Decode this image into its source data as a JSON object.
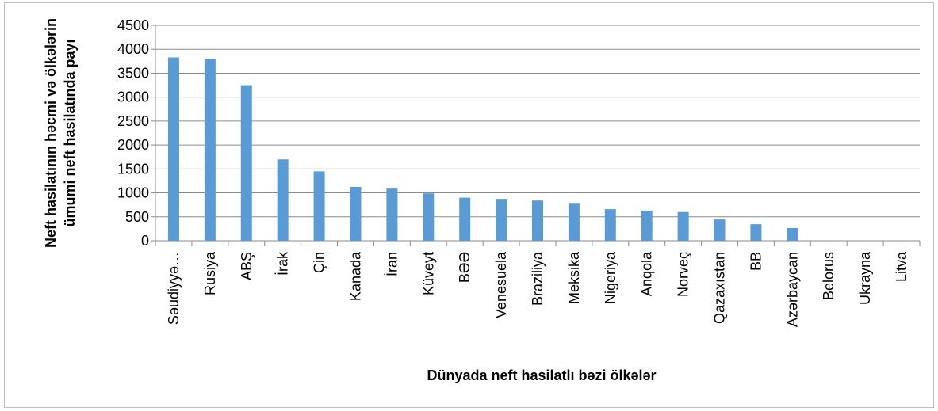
{
  "chart_data": {
    "type": "bar",
    "ylabel": [
      "Neft hasilatının həcmi və ölkələrin",
      "ümumi  neft hasilatında payı"
    ],
    "xlabel": "Dünyada neft hasilatlı bəzi ölkələr",
    "categories": [
      "Səudiyyə…",
      "Rusiya",
      "ABŞ",
      "İrak",
      "Çin",
      "Kanada",
      "İran",
      "Küveyt",
      "BƏƏ",
      "Venesuela",
      "Braziliya",
      "Meksika",
      "Nigeriya",
      "Anqola",
      "Norveç",
      "Qazaxıstan",
      "BB",
      "Azərbaycan",
      "Belorus",
      "Ukrayna",
      "Litva"
    ],
    "values": [
      3830,
      3800,
      3250,
      1700,
      1450,
      1125,
      1090,
      990,
      900,
      875,
      840,
      790,
      660,
      630,
      600,
      445,
      345,
      265,
      0,
      0,
      0
    ],
    "color": "#5b9bd5",
    "ylim": [
      0,
      4500
    ],
    "yticks": [
      0,
      500,
      1000,
      1500,
      2000,
      2500,
      3000,
      3500,
      4000,
      4500
    ],
    "grid": true
  }
}
